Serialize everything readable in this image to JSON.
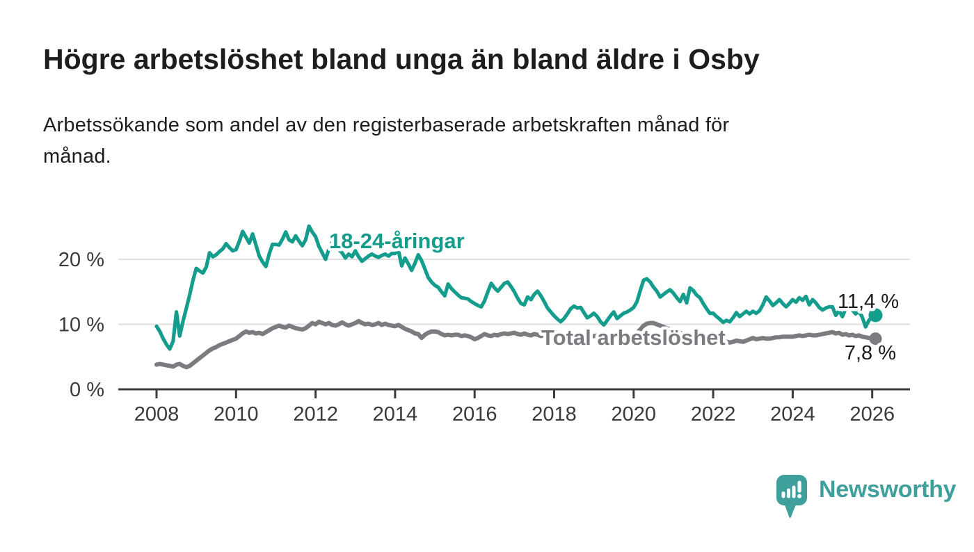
{
  "header": {
    "title": "Högre arbetslöshet bland unga än bland äldre i Osby",
    "subtitle_lines": [
      "Arbetssökande som andel av den registerbaserade arbetskraften månad för",
      "månad."
    ]
  },
  "branding": {
    "name": "Newsworthy",
    "color": "#3f9f9b"
  },
  "colors": {
    "accent_teal": "#149c8c",
    "series_gray": "#7b7b80",
    "axis_text": "#3b3b3b",
    "gridline": "#e0e0e0",
    "value_label_text": "#1a1a1a",
    "background": "#ffffff"
  },
  "chart_data": {
    "type": "line",
    "title": "Högre arbetslöshet bland unga än bland äldre i Osby",
    "subtitle": "Arbetssökande som andel av den registerbaserade arbetskraften månad för månad.",
    "xlabel": "",
    "ylabel": "",
    "x_unit": "year (monthly resolution)",
    "y_unit": "%",
    "x_start": 2008.0,
    "x_step_years": 0.0833333,
    "x_ticks": [
      2008,
      2010,
      2012,
      2014,
      2016,
      2018,
      2020,
      2022,
      2024,
      2026
    ],
    "y_ticks": [
      {
        "value": 0,
        "label": "0 %"
      },
      {
        "value": 10,
        "label": "10 %"
      },
      {
        "value": 20,
        "label": "20 %"
      }
    ],
    "ylim": [
      0,
      26.5
    ],
    "xlim": [
      2007.05,
      2026.95
    ],
    "grid": "horizontal-only",
    "legend": "inline-labels",
    "series": [
      {
        "name": "18-24-åringar",
        "color": "#149c8c",
        "end_label": "11,4 %",
        "end_value": 11.4,
        "values": [
          9.7,
          8.9,
          7.8,
          6.9,
          6.2,
          7.4,
          11.9,
          8.2,
          10.5,
          12.5,
          14.5,
          16.8,
          18.6,
          18.2,
          17.9,
          18.8,
          21.0,
          20.4,
          20.7,
          21.2,
          21.6,
          22.4,
          21.8,
          21.3,
          21.5,
          22.8,
          24.3,
          23.4,
          22.5,
          23.9,
          22.2,
          20.5,
          19.6,
          18.9,
          20.8,
          22.3,
          22.3,
          22.2,
          23.1,
          24.2,
          23.0,
          22.7,
          23.6,
          22.8,
          22.1,
          23.0,
          25.1,
          24.2,
          23.5,
          22.0,
          21.0,
          20.0,
          21.5,
          22.7,
          22.0,
          21.5,
          21.0,
          20.2,
          20.8,
          20.4,
          21.3,
          20.4,
          19.7,
          20.1,
          20.5,
          20.8,
          20.5,
          20.3,
          20.6,
          20.8,
          20.5,
          20.9,
          20.9,
          21.4,
          19.0,
          20.2,
          19.3,
          18.3,
          19.4,
          20.7,
          19.8,
          18.5,
          17.2,
          16.5,
          16.0,
          15.7,
          15.0,
          14.4,
          16.2,
          15.5,
          15.0,
          14.5,
          14.1,
          14.0,
          13.9,
          13.5,
          13.2,
          12.9,
          12.7,
          13.6,
          15.0,
          16.3,
          15.6,
          15.1,
          15.7,
          16.3,
          16.5,
          15.8,
          15.0,
          14.0,
          13.2,
          13.0,
          14.2,
          13.8,
          14.6,
          15.1,
          14.4,
          13.5,
          12.5,
          11.9,
          11.3,
          10.8,
          10.4,
          10.9,
          11.6,
          12.4,
          12.8,
          12.5,
          12.6,
          11.8,
          11.0,
          11.3,
          11.7,
          11.2,
          10.4,
          9.9,
          10.6,
          11.3,
          11.9,
          10.9,
          11.3,
          11.7,
          11.9,
          12.2,
          12.6,
          13.5,
          15.2,
          16.8,
          17.0,
          16.5,
          15.7,
          15.1,
          14.2,
          14.6,
          15.0,
          15.3,
          14.8,
          14.1,
          13.5,
          14.6,
          13.3,
          15.6,
          15.2,
          14.5,
          14.1,
          13.2,
          12.4,
          11.7,
          11.7,
          11.2,
          10.8,
          10.3,
          10.6,
          10.4,
          11.0,
          11.8,
          11.2,
          11.6,
          12.0,
          11.6,
          12.0,
          11.7,
          12.1,
          13.0,
          14.2,
          13.6,
          12.9,
          13.3,
          13.8,
          13.2,
          12.7,
          13.2,
          13.8,
          13.4,
          14.1,
          13.7,
          14.3,
          13.0,
          13.8,
          13.3,
          12.6,
          12.2,
          12.5,
          12.7,
          12.7,
          11.4,
          12.1,
          11.2,
          12.4,
          13.0,
          12.2,
          11.6,
          12.0,
          11.1,
          9.6,
          10.6,
          11.2,
          11.4
        ]
      },
      {
        "name": "Total arbetslöshet",
        "color": "#7b7b80",
        "end_label": "7,8 %",
        "end_value": 7.8,
        "values": [
          3.8,
          3.9,
          3.8,
          3.7,
          3.6,
          3.5,
          3.8,
          3.9,
          3.6,
          3.4,
          3.6,
          4.0,
          4.4,
          4.8,
          5.2,
          5.6,
          6.0,
          6.3,
          6.5,
          6.8,
          7.0,
          7.2,
          7.4,
          7.6,
          7.8,
          8.2,
          8.6,
          8.9,
          8.7,
          8.8,
          8.6,
          8.7,
          8.5,
          8.8,
          9.1,
          9.4,
          9.6,
          9.8,
          9.6,
          9.5,
          9.8,
          9.6,
          9.4,
          9.3,
          9.2,
          9.4,
          9.8,
          10.2,
          10.0,
          10.4,
          10.2,
          10.0,
          10.2,
          9.9,
          9.8,
          10.0,
          10.3,
          10.0,
          9.8,
          10.0,
          10.2,
          10.5,
          10.2,
          10.0,
          10.1,
          9.9,
          10.0,
          10.2,
          9.9,
          10.1,
          9.9,
          9.8,
          9.7,
          9.9,
          9.6,
          9.3,
          9.1,
          8.9,
          8.6,
          8.5,
          7.9,
          8.4,
          8.7,
          8.9,
          8.9,
          8.8,
          8.5,
          8.3,
          8.4,
          8.3,
          8.4,
          8.4,
          8.2,
          8.3,
          8.2,
          8.0,
          7.7,
          7.9,
          8.2,
          8.5,
          8.3,
          8.2,
          8.4,
          8.3,
          8.5,
          8.6,
          8.5,
          8.6,
          8.7,
          8.5,
          8.4,
          8.6,
          8.4,
          8.3,
          8.5,
          8.4,
          8.2,
          8.3,
          8.2,
          8.3,
          8.4,
          8.2,
          8.0,
          8.1,
          8.2,
          8.0,
          7.9,
          8.1,
          8.2,
          8.0,
          7.9,
          8.1,
          8.2,
          8.3,
          8.1,
          8.0,
          8.2,
          8.3,
          8.2,
          8.1,
          8.2,
          8.3,
          8.2,
          8.3,
          8.4,
          8.7,
          9.2,
          9.8,
          10.1,
          10.2,
          10.2,
          10.0,
          9.8,
          9.6,
          9.4,
          9.2,
          9.0,
          8.8,
          8.7,
          8.5,
          8.4,
          8.3,
          8.2,
          8.1,
          8.0,
          7.9,
          7.8,
          7.7,
          7.6,
          7.5,
          7.3,
          7.2,
          7.3,
          7.2,
          7.3,
          7.5,
          7.4,
          7.3,
          7.5,
          7.7,
          7.9,
          7.7,
          7.8,
          7.9,
          7.8,
          7.8,
          7.9,
          8.0,
          8.0,
          8.1,
          8.1,
          8.1,
          8.1,
          8.2,
          8.3,
          8.2,
          8.3,
          8.4,
          8.3,
          8.3,
          8.4,
          8.5,
          8.6,
          8.7,
          8.8,
          8.6,
          8.7,
          8.4,
          8.5,
          8.3,
          8.4,
          8.2,
          8.3,
          8.1,
          8.0,
          7.9,
          7.8,
          7.8
        ]
      }
    ]
  }
}
